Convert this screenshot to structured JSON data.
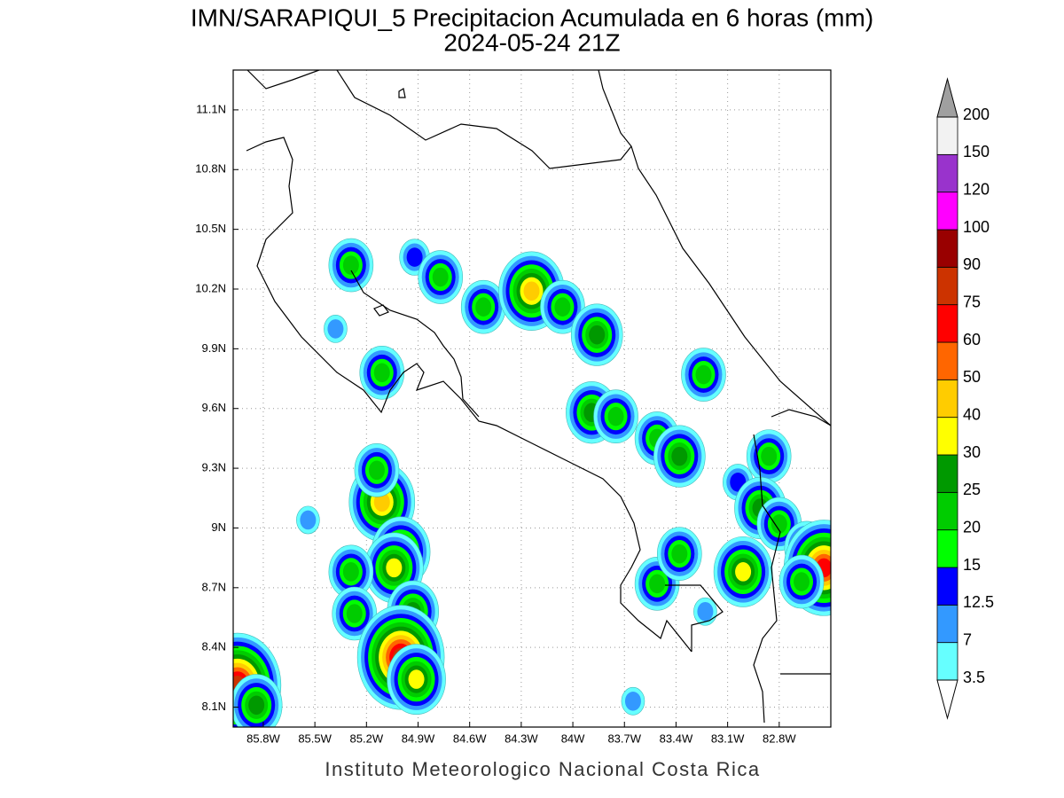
{
  "title": "IMN/SARAPIQUI_5 Precipitacion Acumulada en 6 horas (mm)",
  "subtitle": "2024-05-24 21Z",
  "footer": "Instituto Meteorologico Nacional Costa Rica",
  "map": {
    "xlim": [
      -85.975,
      -82.5
    ],
    "ylim": [
      8.0,
      11.3
    ],
    "xticks": [
      {
        "value": -85.8,
        "label": "85.8W"
      },
      {
        "value": -85.5,
        "label": "85.5W"
      },
      {
        "value": -85.2,
        "label": "85.2W"
      },
      {
        "value": -84.9,
        "label": "84.9W"
      },
      {
        "value": -84.6,
        "label": "84.6W"
      },
      {
        "value": -84.3,
        "label": "84.3W"
      },
      {
        "value": -84,
        "label": "84W"
      },
      {
        "value": -83.7,
        "label": "83.7W"
      },
      {
        "value": -83.4,
        "label": "83.4W"
      },
      {
        "value": -83.1,
        "label": "83.1W"
      },
      {
        "value": -82.8,
        "label": "82.8W"
      }
    ],
    "yticks": [
      {
        "value": 8.1,
        "label": "8.1N"
      },
      {
        "value": 8.4,
        "label": "8.4N"
      },
      {
        "value": 8.7,
        "label": "8.7N"
      },
      {
        "value": 9,
        "label": "9N"
      },
      {
        "value": 9.3,
        "label": "9.3N"
      },
      {
        "value": 9.6,
        "label": "9.6N"
      },
      {
        "value": 9.9,
        "label": "9.9N"
      },
      {
        "value": 10.2,
        "label": "10.2N"
      },
      {
        "value": 10.5,
        "label": "10.5N"
      },
      {
        "value": 10.8,
        "label": "10.8N"
      },
      {
        "value": 11.1,
        "label": "11.1N"
      }
    ],
    "grid": true,
    "cells": [
      {
        "lon": -85.29,
        "lat": 10.32,
        "value": 22
      },
      {
        "lon": -85.38,
        "lat": 10.0,
        "value": 12
      },
      {
        "lon": -85.11,
        "lat": 9.78,
        "value": 22
      },
      {
        "lon": -84.92,
        "lat": 10.36,
        "value": 14
      },
      {
        "lon": -84.77,
        "lat": 10.26,
        "value": 22
      },
      {
        "lon": -84.52,
        "lat": 10.11,
        "value": 22
      },
      {
        "lon": -84.24,
        "lat": 10.19,
        "value": 45
      },
      {
        "lon": -84.06,
        "lat": 10.11,
        "value": 22
      },
      {
        "lon": -83.86,
        "lat": 9.97,
        "value": 25
      },
      {
        "lon": -83.89,
        "lat": 9.58,
        "value": 25
      },
      {
        "lon": -83.75,
        "lat": 9.56,
        "value": 22
      },
      {
        "lon": -83.51,
        "lat": 9.45,
        "value": 22
      },
      {
        "lon": -83.38,
        "lat": 9.36,
        "value": 25
      },
      {
        "lon": -83.24,
        "lat": 9.77,
        "value": 22
      },
      {
        "lon": -83.04,
        "lat": 9.23,
        "value": 14
      },
      {
        "lon": -82.86,
        "lat": 9.36,
        "value": 22
      },
      {
        "lon": -82.91,
        "lat": 9.1,
        "value": 25
      },
      {
        "lon": -82.8,
        "lat": 9.02,
        "value": 22
      },
      {
        "lon": -82.64,
        "lat": 8.9,
        "value": 22
      },
      {
        "lon": -85.11,
        "lat": 9.13,
        "value": 45
      },
      {
        "lon": -85.14,
        "lat": 9.29,
        "value": 22
      },
      {
        "lon": -85.54,
        "lat": 9.04,
        "value": 12
      },
      {
        "lon": -85.0,
        "lat": 8.88,
        "value": 35
      },
      {
        "lon": -85.04,
        "lat": 8.8,
        "value": 30
      },
      {
        "lon": -85.29,
        "lat": 8.78,
        "value": 22
      },
      {
        "lon": -85.27,
        "lat": 8.57,
        "value": 22
      },
      {
        "lon": -84.93,
        "lat": 8.58,
        "value": 25
      },
      {
        "lon": -85.0,
        "lat": 8.35,
        "value": 75
      },
      {
        "lon": -84.91,
        "lat": 8.24,
        "value": 35
      },
      {
        "lon": -85.95,
        "lat": 8.21,
        "value": 75
      },
      {
        "lon": -85.84,
        "lat": 8.11,
        "value": 25
      },
      {
        "lon": -83.51,
        "lat": 8.72,
        "value": 22
      },
      {
        "lon": -83.38,
        "lat": 8.87,
        "value": 22
      },
      {
        "lon": -83.01,
        "lat": 8.78,
        "value": 35
      },
      {
        "lon": -82.54,
        "lat": 8.8,
        "value": 65
      },
      {
        "lon": -82.67,
        "lat": 8.73,
        "value": 22
      },
      {
        "lon": -83.65,
        "lat": 8.13,
        "value": 10
      },
      {
        "lon": -83.23,
        "lat": 8.58,
        "value": 10
      }
    ]
  },
  "colorbar": {
    "levels": [
      3.5,
      7,
      12.5,
      15,
      20,
      25,
      30,
      40,
      50,
      60,
      75,
      90,
      100,
      120,
      150,
      200
    ],
    "colors": [
      "#66ffff",
      "#3399ff",
      "#0000ff",
      "#00ff00",
      "#00cc00",
      "#009900",
      "#ffff00",
      "#ffcc00",
      "#ff6600",
      "#ff0000",
      "#cc3300",
      "#990000",
      "#ff00ff",
      "#9933cc",
      "#f2f2f2"
    ],
    "under_color": "#ffffff",
    "over_color": "#a0a0a0"
  }
}
